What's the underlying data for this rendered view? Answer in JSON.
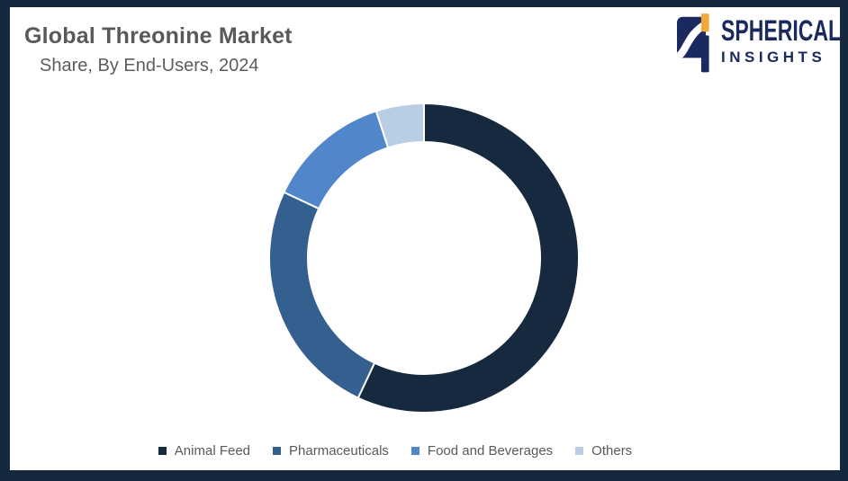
{
  "header": {
    "title": "Global Threonine Market",
    "subtitle": "Share, By End-Users, 2024"
  },
  "logo": {
    "wordmark": "SPHERICAL",
    "wordmark_sub": "INSIGHTS",
    "navy": "#1B2A5E",
    "orange": "#F2A83B"
  },
  "chart_data": {
    "type": "pie",
    "subtype": "donut",
    "title": "Global Threonine Market Share, By End-Users, 2024",
    "categories": [
      "Animal Feed",
      "Pharmaceuticals",
      "Food and Beverages",
      "Others"
    ],
    "values": [
      57,
      25,
      13,
      5
    ],
    "unit": "percent",
    "colors": [
      "#17293E",
      "#33608F",
      "#5286CA",
      "#B9CDE4"
    ],
    "start_angle_deg": 0,
    "direction": "clockwise",
    "inner_radius_ratio": 0.75,
    "separator_color": "#FFFFFF",
    "data_labels": false,
    "legend_position": "bottom"
  },
  "legend": {
    "text_color": "#595959"
  },
  "frame": {
    "border_color": "#16283E",
    "background": "#FFFFFF"
  }
}
